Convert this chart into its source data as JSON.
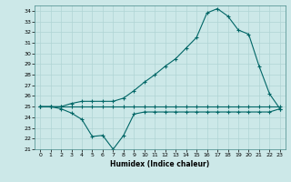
{
  "title": "",
  "xlabel": "Humidex (Indice chaleur)",
  "ylabel": "",
  "bg_color": "#cce8e8",
  "grid_color": "#b0d4d4",
  "line_color": "#006666",
  "ylim": [
    21,
    34.5
  ],
  "xlim": [
    -0.5,
    23.5
  ],
  "yticks": [
    21,
    22,
    23,
    24,
    25,
    26,
    27,
    28,
    29,
    30,
    31,
    32,
    33,
    34
  ],
  "xticks": [
    0,
    1,
    2,
    3,
    4,
    5,
    6,
    7,
    8,
    9,
    10,
    11,
    12,
    13,
    14,
    15,
    16,
    17,
    18,
    19,
    20,
    21,
    22,
    23
  ],
  "line1_x": [
    0,
    1,
    2,
    3,
    4,
    5,
    6,
    7,
    8,
    9,
    10,
    11,
    12,
    13,
    14,
    15,
    16,
    17,
    18,
    19,
    20,
    21,
    22,
    23
  ],
  "line1_y": [
    25.0,
    25.0,
    25.0,
    25.0,
    25.0,
    25.0,
    25.0,
    25.0,
    25.0,
    25.0,
    25.0,
    25.0,
    25.0,
    25.0,
    25.0,
    25.0,
    25.0,
    25.0,
    25.0,
    25.0,
    25.0,
    25.0,
    25.0,
    25.0
  ],
  "line2_x": [
    0,
    1,
    2,
    3,
    4,
    5,
    6,
    7,
    8,
    9,
    10,
    11,
    12,
    13,
    14,
    15,
    16,
    17,
    18,
    19,
    20,
    21,
    22,
    23
  ],
  "line2_y": [
    25.0,
    25.0,
    24.8,
    24.4,
    23.8,
    22.2,
    22.3,
    21.0,
    22.3,
    24.3,
    24.5,
    24.5,
    24.5,
    24.5,
    24.5,
    24.5,
    24.5,
    24.5,
    24.5,
    24.5,
    24.5,
    24.5,
    24.5,
    24.8
  ],
  "line3_x": [
    0,
    1,
    2,
    3,
    4,
    5,
    6,
    7,
    8,
    9,
    10,
    11,
    12,
    13,
    14,
    15,
    16,
    17,
    18,
    19,
    20,
    21,
    22,
    23
  ],
  "line3_y": [
    25.0,
    25.0,
    25.0,
    25.3,
    25.5,
    25.5,
    25.5,
    25.5,
    25.8,
    26.5,
    27.3,
    28.0,
    28.8,
    29.5,
    30.5,
    31.5,
    33.8,
    34.2,
    33.5,
    32.2,
    31.8,
    28.8,
    26.2,
    24.8
  ]
}
